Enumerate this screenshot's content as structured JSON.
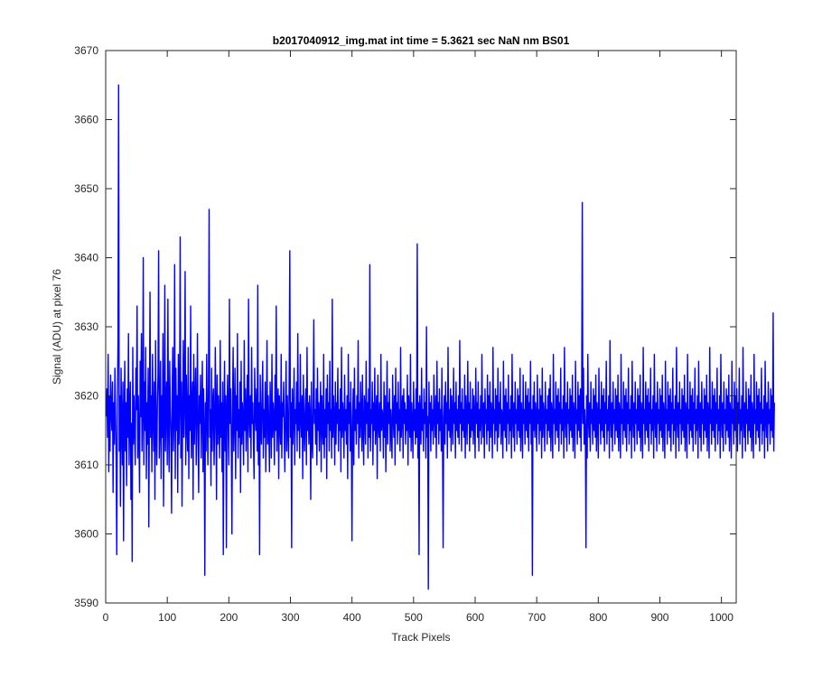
{
  "chart_data": {
    "type": "line",
    "title": "b2017040912_img.mat int time = 5.3621 sec  NaN nm BS01",
    "xlabel": "Track Pixels",
    "ylabel": "Signal (ADU) at pixel 76",
    "xlim": [
      0,
      1024
    ],
    "ylim": [
      3590,
      3670
    ],
    "xticks": [
      0,
      100,
      200,
      300,
      400,
      500,
      600,
      700,
      800,
      900,
      1000
    ],
    "yticks": [
      3590,
      3600,
      3610,
      3620,
      3630,
      3640,
      3650,
      3660,
      3670
    ],
    "grid": false,
    "series_color": "#0000ff",
    "series": [
      {
        "x_start": 1,
        "x_step": 1,
        "values": [
          3617,
          3621,
          3614,
          3626,
          3609,
          3620,
          3612,
          3623,
          3618,
          3615,
          3622,
          3606,
          3619,
          3613,
          3624,
          3617,
          3611,
          3597,
          3619,
          3628,
          3665,
          3612,
          3620,
          3604,
          3624,
          3616,
          3610,
          3622,
          3599,
          3617,
          3625,
          3612,
          3619,
          3607,
          3621,
          3614,
          3629,
          3610,
          3618,
          3622,
          3605,
          3616,
          3596,
          3627,
          3613,
          3620,
          3615,
          3610,
          3624,
          3618,
          3633,
          3611,
          3620,
          3614,
          3606,
          3625,
          3617,
          3629,
          3612,
          3618,
          3640,
          3610,
          3622,
          3615,
          3627,
          3608,
          3619,
          3613,
          3624,
          3601,
          3618,
          3635,
          3614,
          3620,
          3609,
          3626,
          3617,
          3612,
          3622,
          3605,
          3628,
          3615,
          3610,
          3619,
          3623,
          3641,
          3611,
          3616,
          3625,
          3608,
          3620,
          3614,
          3629,
          3604,
          3617,
          3636,
          3612,
          3619,
          3622,
          3610,
          3634,
          3616,
          3609,
          3625,
          3618,
          3614,
          3603,
          3621,
          3627,
          3612,
          3617,
          3639,
          3608,
          3624,
          3615,
          3620,
          3606,
          3626,
          3613,
          3619,
          3643,
          3611,
          3622,
          3604,
          3617,
          3628,
          3614,
          3619,
          3638,
          3610,
          3623,
          3616,
          3612,
          3627,
          3608,
          3620,
          3615,
          3633,
          3611,
          3618,
          3622,
          3605,
          3626,
          3613,
          3619,
          3624,
          3610,
          3617,
          3629,
          3614,
          3606,
          3620,
          3616,
          3623,
          3611,
          3618,
          3625,
          3609,
          3621,
          3615,
          3594,
          3619,
          3612,
          3626,
          3617,
          3610,
          3622,
          3647,
          3614,
          3618,
          3607,
          3624,
          3612,
          3619,
          3621,
          3610,
          3615,
          3627,
          3618,
          3605,
          3623,
          3613,
          3620,
          3616,
          3611,
          3628,
          3614,
          3619,
          3609,
          3622,
          3597,
          3617,
          3625,
          3612,
          3620,
          3598,
          3618,
          3623,
          3615,
          3610,
          3634,
          3616,
          3621,
          3613,
          3600,
          3619,
          3627,
          3612,
          3617,
          3624,
          3608,
          3620,
          3615,
          3629,
          3611,
          3618,
          3614,
          3622,
          3606,
          3625,
          3613,
          3619,
          3616,
          3610,
          3628,
          3615,
          3621,
          3612,
          3618,
          3623,
          3609,
          3634,
          3617,
          3614,
          3620,
          3611,
          3627,
          3616,
          3619,
          3613,
          3608,
          3624,
          3618,
          3615,
          3621,
          3612,
          3636,
          3610,
          3619,
          3597,
          3623,
          3616,
          3613,
          3620,
          3625,
          3611,
          3618,
          3614,
          3622,
          3609,
          3617,
          3628,
          3613,
          3620,
          3615,
          3609,
          3622,
          3618,
          3611,
          3626,
          3614,
          3619,
          3617,
          3610,
          3623,
          3615,
          3633,
          3612,
          3618,
          3621,
          3608,
          3620,
          3616,
          3613,
          3626,
          3611,
          3619,
          3617,
          3622,
          3614,
          3609,
          3618,
          3625,
          3612,
          3620,
          3615,
          3611,
          3623,
          3641,
          3614,
          3619,
          3598,
          3621,
          3613,
          3617,
          3624,
          3610,
          3618,
          3616,
          3622,
          3612,
          3629,
          3615,
          3619,
          3611,
          3626,
          3617,
          3614,
          3620,
          3608,
          3623,
          3616,
          3612,
          3618,
          3621,
          3610,
          3627,
          3615,
          3619,
          3613,
          3620,
          3617,
          3605,
          3622,
          3614,
          3611,
          3619,
          3631,
          3616,
          3618,
          3613,
          3621,
          3610,
          3624,
          3615,
          3619,
          3612,
          3617,
          3622,
          3609,
          3620,
          3616,
          3613,
          3626,
          3611,
          3618,
          3614,
          3621,
          3608,
          3623,
          3616,
          3619,
          3612,
          3625,
          3615,
          3618,
          3611,
          3634,
          3614,
          3620,
          3617,
          3610,
          3622,
          3613,
          3619,
          3616,
          3624,
          3612,
          3618,
          3615,
          3621,
          3609,
          3627,
          3614,
          3619,
          3617,
          3611,
          3623,
          3615,
          3618,
          3613,
          3620,
          3608,
          3626,
          3616,
          3619,
          3612,
          3622,
          3614,
          3599,
          3617,
          3621,
          3610,
          3624,
          3615,
          3618,
          3613,
          3620,
          3616,
          3628,
          3611,
          3619,
          3614,
          3622,
          3617,
          3612,
          3623,
          3615,
          3610,
          3620,
          3618,
          3613,
          3625,
          3616,
          3619,
          3611,
          3621,
          3614,
          3639,
          3612,
          3618,
          3616,
          3622,
          3610,
          3619,
          3615,
          3624,
          3613,
          3617,
          3620,
          3608,
          3623,
          3616,
          3614,
          3619,
          3612,
          3626,
          3615,
          3618,
          3617,
          3611,
          3622,
          3614,
          3620,
          3609,
          3617,
          3625,
          3613,
          3619,
          3616,
          3621,
          3612,
          3618,
          3615,
          3611,
          3623,
          3617,
          3614,
          3620,
          3610,
          3624,
          3616,
          3619,
          3613,
          3622,
          3615,
          3618,
          3612,
          3627,
          3614,
          3617,
          3620,
          3611,
          3621,
          3616,
          3619,
          3613,
          3618,
          3615,
          3623,
          3610,
          3620,
          3617,
          3614,
          3626,
          3612,
          3619,
          3616,
          3611,
          3622,
          3615,
          3618,
          3613,
          3621,
          3614,
          3642,
          3611,
          3619,
          3597,
          3620,
          3617,
          3613,
          3624,
          3615,
          3618,
          3612,
          3621,
          3616,
          3619,
          3611,
          3630,
          3614,
          3617,
          3592,
          3622,
          3616,
          3619,
          3612,
          3620,
          3615,
          3618,
          3613,
          3623,
          3617,
          3614,
          3620,
          3611,
          3625,
          3616,
          3619,
          3613,
          3621,
          3615,
          3618,
          3612,
          3624,
          3614,
          3598,
          3617,
          3620,
          3613,
          3622,
          3616,
          3619,
          3611,
          3627,
          3615,
          3618,
          3614,
          3621,
          3612,
          3620,
          3617,
          3613,
          3624,
          3616,
          3619,
          3611,
          3622,
          3615,
          3618,
          3614,
          3620,
          3613,
          3628,
          3616,
          3619,
          3612,
          3621,
          3615,
          3618,
          3614,
          3623,
          3611,
          3620,
          3617,
          3613,
          3625,
          3616,
          3619,
          3612,
          3622,
          3614,
          3618,
          3615,
          3621,
          3613,
          3620,
          3617,
          3611,
          3624,
          3616,
          3619,
          3614,
          3622,
          3612,
          3618,
          3615,
          3620,
          3613,
          3626,
          3617,
          3614,
          3619,
          3611,
          3621,
          3616,
          3618,
          3613,
          3623,
          3615,
          3620,
          3612,
          3622,
          3614,
          3619,
          3617,
          3611,
          3627,
          3616,
          3618,
          3613,
          3621,
          3615,
          3620,
          3612,
          3624,
          3614,
          3619,
          3616,
          3622,
          3613,
          3618,
          3617,
          3611,
          3625,
          3615,
          3620,
          3614,
          3621,
          3612,
          3619,
          3616,
          3623,
          3613,
          3618,
          3615,
          3620,
          3611,
          3626,
          3617,
          3614,
          3619,
          3612,
          3622,
          3616,
          3618,
          3613,
          3621,
          3615,
          3620,
          3614,
          3624,
          3612,
          3619,
          3617,
          3611,
          3623,
          3616,
          3618,
          3613,
          3622,
          3615,
          3620,
          3614,
          3621,
          3612,
          3619,
          3616,
          3625,
          3613,
          3618,
          3594,
          3620,
          3615,
          3622,
          3614,
          3619,
          3617,
          3612,
          3623,
          3616,
          3618,
          3613,
          3621,
          3615,
          3620,
          3611,
          3624,
          3614,
          3619,
          3617,
          3612,
          3622,
          3616,
          3618,
          3613,
          3620,
          3615,
          3621,
          3614,
          3623,
          3612,
          3619,
          3617,
          3611,
          3626,
          3616,
          3618,
          3613,
          3622,
          3615,
          3620,
          3614,
          3621,
          3612,
          3619,
          3616,
          3624,
          3613,
          3618,
          3615,
          3620,
          3611,
          3627,
          3617,
          3614,
          3619,
          3612,
          3622,
          3616,
          3618,
          3613,
          3621,
          3615,
          3620,
          3614,
          3623,
          3612,
          3619,
          3617,
          3611,
          3625,
          3616,
          3618,
          3613,
          3622,
          3615,
          3620,
          3614,
          3621,
          3612,
          3619,
          3648,
          3616,
          3624,
          3613,
          3618,
          3615,
          3598,
          3620,
          3611,
          3626,
          3617,
          3614,
          3619,
          3612,
          3622,
          3616,
          3618,
          3613,
          3621,
          3615,
          3620,
          3614,
          3623,
          3612,
          3619,
          3617,
          3611,
          3624,
          3616,
          3618,
          3613,
          3622,
          3615,
          3620,
          3614,
          3621,
          3612,
          3619,
          3616,
          3625,
          3613,
          3618,
          3615,
          3620,
          3611,
          3628,
          3617,
          3614,
          3619,
          3612,
          3622,
          3616,
          3618,
          3613,
          3621,
          3615,
          3620,
          3614,
          3623,
          3612,
          3619,
          3617,
          3611,
          3626,
          3616,
          3618,
          3613,
          3622,
          3615,
          3620,
          3614,
          3621,
          3612,
          3619,
          3616,
          3624,
          3613,
          3618,
          3615,
          3620,
          3611,
          3625,
          3617,
          3614,
          3619,
          3612,
          3622,
          3616,
          3618,
          3613,
          3621,
          3615,
          3620,
          3614,
          3623,
          3612,
          3619,
          3617,
          3611,
          3627,
          3616,
          3618,
          3613,
          3622,
          3615,
          3620,
          3614,
          3621,
          3612,
          3619,
          3616,
          3624,
          3613,
          3618,
          3615,
          3620,
          3611,
          3626,
          3617,
          3614,
          3619,
          3612,
          3622,
          3616,
          3618,
          3613,
          3621,
          3615,
          3620,
          3614,
          3623,
          3612,
          3619,
          3617,
          3611,
          3625,
          3616,
          3618,
          3613,
          3622,
          3615,
          3620,
          3614,
          3621,
          3612,
          3619,
          3616,
          3624,
          3613,
          3618,
          3615,
          3620,
          3611,
          3627,
          3617,
          3614,
          3619,
          3612,
          3622,
          3616,
          3618,
          3613,
          3621,
          3615,
          3620,
          3614,
          3623,
          3612,
          3619,
          3617,
          3611,
          3626,
          3616,
          3618,
          3613,
          3622,
          3615,
          3620,
          3614,
          3621,
          3612,
          3619,
          3616,
          3624,
          3613,
          3618,
          3615,
          3620,
          3611,
          3625,
          3617,
          3614,
          3619,
          3612,
          3622,
          3616,
          3618,
          3613,
          3621,
          3615,
          3620,
          3614,
          3623,
          3612,
          3619,
          3617,
          3611,
          3627,
          3616,
          3618,
          3613,
          3622,
          3615,
          3620,
          3614,
          3621,
          3612,
          3619,
          3616,
          3624,
          3613,
          3618,
          3615,
          3620,
          3611,
          3626,
          3617,
          3614,
          3619,
          3612,
          3622,
          3616,
          3618,
          3613,
          3621,
          3615,
          3620,
          3614,
          3623,
          3612,
          3619,
          3617,
          3611,
          3625,
          3616,
          3618,
          3613,
          3622,
          3615,
          3620,
          3614,
          3621,
          3612,
          3619,
          3616,
          3624,
          3613,
          3618,
          3615,
          3620,
          3611,
          3627,
          3617,
          3614,
          3619,
          3612,
          3622,
          3616,
          3618,
          3613,
          3621,
          3615,
          3620,
          3614,
          3623,
          3612,
          3619,
          3617,
          3611,
          3626,
          3616,
          3618,
          3613,
          3622,
          3615,
          3620,
          3614,
          3621,
          3612,
          3619,
          3616,
          3624,
          3613,
          3618,
          3615,
          3620,
          3611,
          3625,
          3617,
          3614,
          3619,
          3612,
          3622,
          3616,
          3618,
          3613,
          3621,
          3615,
          3620,
          3614,
          3632,
          3612,
          3619
        ]
      }
    ]
  }
}
